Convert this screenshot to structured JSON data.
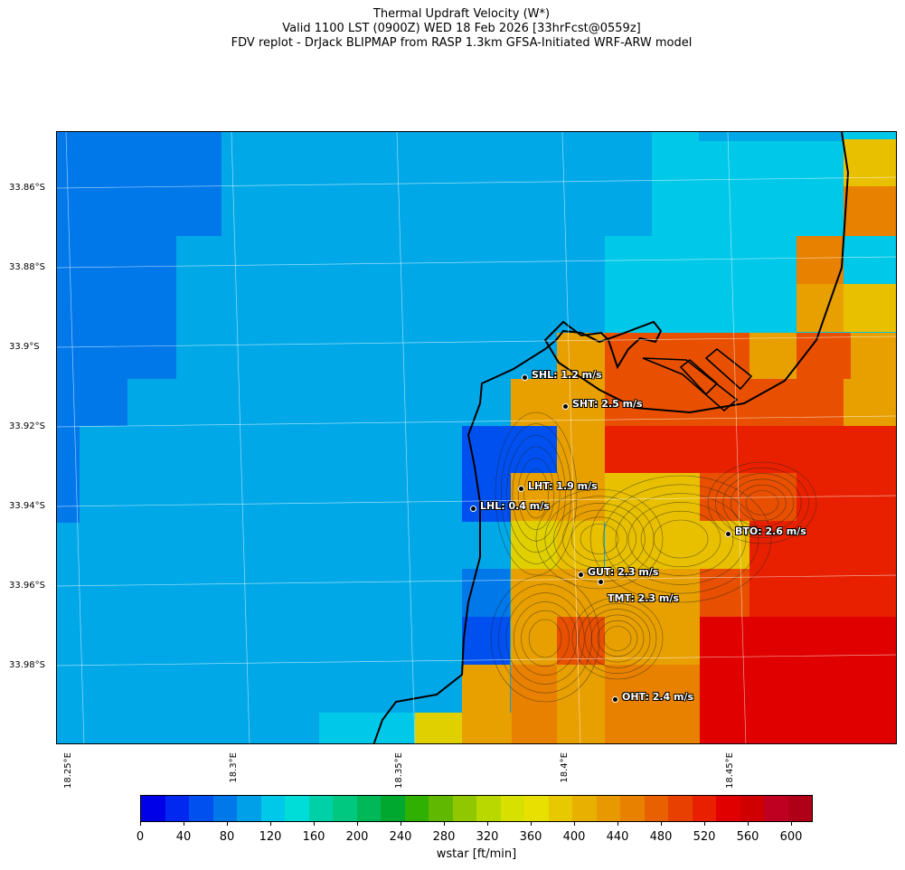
{
  "title": {
    "line1": "Thermal Updraft Velocity (W*)",
    "line2": "Valid 1100 LST (0900Z) WED 18 Feb 2026 [33hrFcst@0559z]",
    "line3": "FDV replot - DrJack BLIPMAP from RASP 1.3km GFSA-Initiated WRF-ARW model"
  },
  "latitude_labels": [
    "33.86°S",
    "33.88°S",
    "33.9°S",
    "33.92°S",
    "33.94°S",
    "33.96°S",
    "33.98°S"
  ],
  "longitude_labels": [
    "18.25°E",
    "18.3°E",
    "18.35°E",
    "18.4°E",
    "18.45°E"
  ],
  "stations": [
    {
      "name": "SHL",
      "label": "SHL: 1.2 m/s"
    },
    {
      "name": "SHT",
      "label": "SHT: 2.5 m/s"
    },
    {
      "name": "LHT",
      "label": "LHT: 1.9 m/s"
    },
    {
      "name": "LHL",
      "label": "LHL: 0.4 m/s"
    },
    {
      "name": "BTO",
      "label": "BTO: 2.6 m/s"
    },
    {
      "name": "GUT",
      "label": "GUT: 2.3 m/s"
    },
    {
      "name": "TMT",
      "label": "TMT: 2.3 m/s"
    },
    {
      "name": "OHT",
      "label": "OHT: 2.4 m/s"
    }
  ],
  "colorbar": {
    "label": "wstar [ft/min]",
    "ticks": [
      "0",
      "40",
      "80",
      "120",
      "160",
      "200",
      "240",
      "280",
      "320",
      "360",
      "400",
      "440",
      "480",
      "520",
      "560",
      "600"
    ],
    "colors": [
      "#0000e8",
      "#0028f0",
      "#0050f0",
      "#0078ea",
      "#00a0e8",
      "#00c8e8",
      "#00dcd8",
      "#00d0a8",
      "#00c880",
      "#00b858",
      "#00a830",
      "#30b000",
      "#60b800",
      "#90c800",
      "#b8d800",
      "#d8e000",
      "#e8e000",
      "#e8c800",
      "#e8b000",
      "#e89800",
      "#e88000",
      "#e86000",
      "#e84000",
      "#e82000",
      "#e00000",
      "#d00000",
      "#c00020",
      "#b00018"
    ],
    "min": 0,
    "max": 620
  },
  "grid_colors": {
    "a": "#0078ea",
    "b": "#00a8e8",
    "c": "#00c8e8",
    "d": "#0050f0",
    "e": "#e8a000",
    "f": "#e88000",
    "g": "#e85000",
    "h": "#e82000",
    "i": "#e0d000",
    "j": "#e8c000",
    "k": "#e00000",
    "l": "#e8b800"
  }
}
